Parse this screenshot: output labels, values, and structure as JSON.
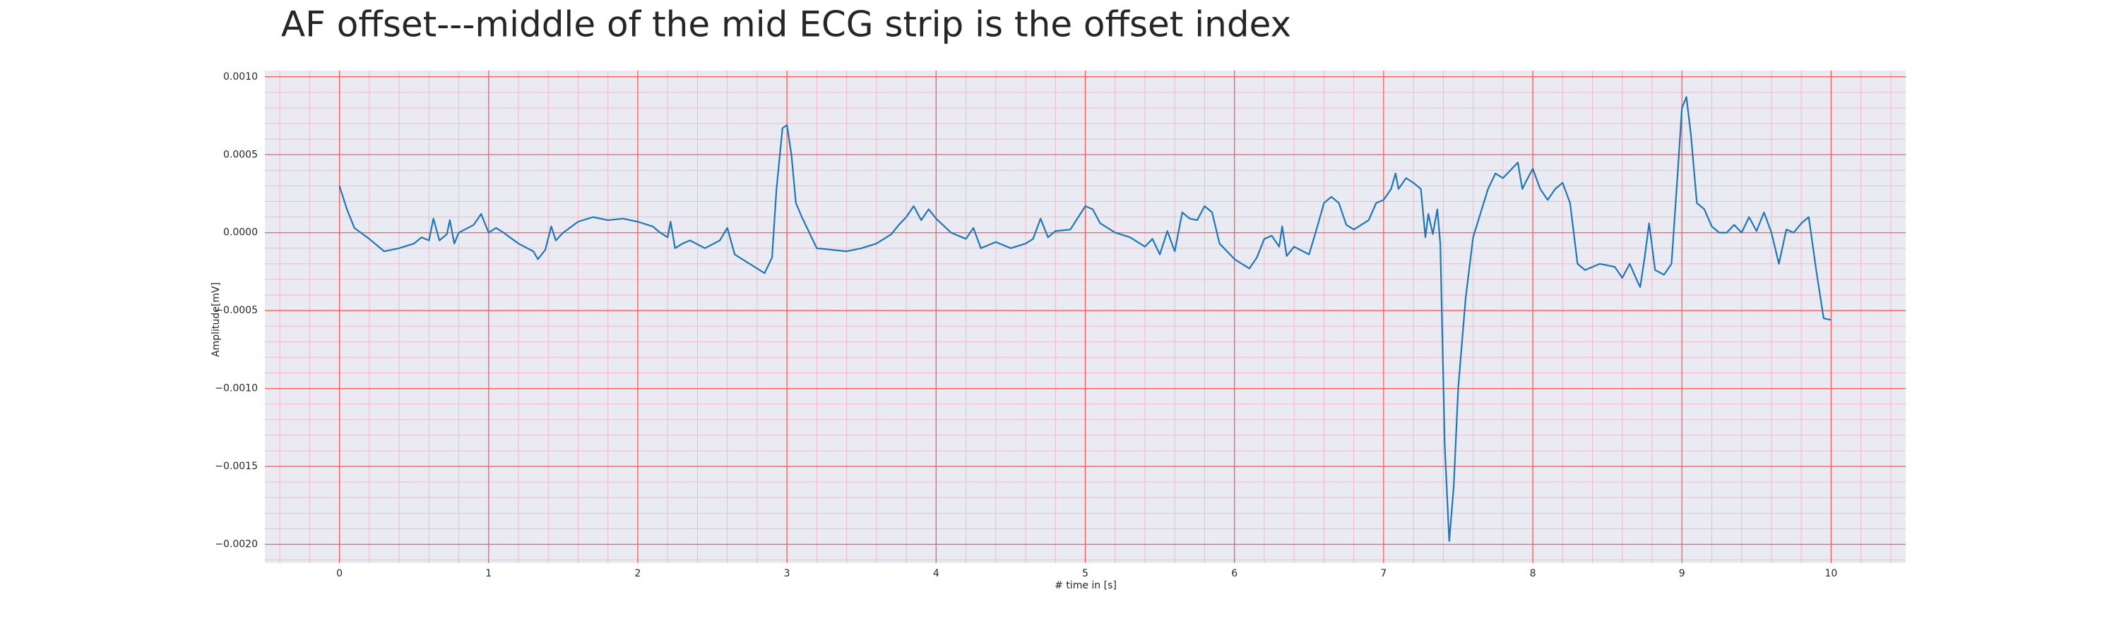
{
  "chart_data": {
    "type": "line",
    "title": "AF offset---middle of the mid ECG strip is the offset index",
    "x_label": "# time in [s]",
    "y_label": "Amplitude[mV]",
    "color": "#1f77b4",
    "background": "#eaeaf2",
    "grid": true,
    "grid_color": "#ff5a5a",
    "minor_grid": true,
    "minor_grid_color": "#f4b8c8",
    "minor_divisions": 5,
    "xlim": [
      -0.5,
      10.5
    ],
    "ylim": [
      -0.00212,
      0.00104
    ],
    "xticks": [
      0,
      1,
      2,
      3,
      4,
      5,
      6,
      7,
      8,
      9,
      10
    ],
    "yticks": [
      {
        "value": 0.001,
        "label": "0.0010"
      },
      {
        "value": 0.0005,
        "label": "0.0005"
      },
      {
        "value": 0,
        "label": "0.0000"
      },
      {
        "value": -0.0005,
        "label": "−0.0005"
      },
      {
        "value": -0.001,
        "label": "−0.0010"
      },
      {
        "value": -0.0015,
        "label": "−0.0015"
      },
      {
        "value": -0.002,
        "label": "−0.0020"
      }
    ],
    "x": [
      0,
      0.05,
      0.1,
      0.2,
      0.3,
      0.4,
      0.5,
      0.55,
      0.6,
      0.63,
      0.67,
      0.72,
      0.74,
      0.77,
      0.8,
      0.9,
      0.95,
      1.0,
      1.05,
      1.1,
      1.2,
      1.3,
      1.33,
      1.38,
      1.42,
      1.45,
      1.5,
      1.6,
      1.7,
      1.8,
      1.9,
      2.0,
      2.1,
      2.15,
      2.2,
      2.22,
      2.25,
      2.3,
      2.35,
      2.45,
      2.55,
      2.6,
      2.65,
      2.75,
      2.85,
      2.9,
      2.93,
      2.97,
      3.0,
      3.03,
      3.06,
      3.1,
      3.15,
      3.2,
      3.3,
      3.4,
      3.5,
      3.6,
      3.7,
      3.75,
      3.8,
      3.85,
      3.9,
      3.95,
      4.0,
      4.1,
      4.2,
      4.25,
      4.3,
      4.4,
      4.5,
      4.6,
      4.65,
      4.7,
      4.75,
      4.8,
      4.9,
      5.0,
      5.05,
      5.1,
      5.2,
      5.3,
      5.4,
      5.45,
      5.5,
      5.55,
      5.6,
      5.65,
      5.7,
      5.75,
      5.8,
      5.85,
      5.9,
      6.0,
      6.1,
      6.15,
      6.2,
      6.25,
      6.3,
      6.32,
      6.35,
      6.4,
      6.5,
      6.55,
      6.6,
      6.65,
      6.7,
      6.75,
      6.8,
      6.9,
      6.95,
      7.0,
      7.05,
      7.08,
      7.1,
      7.15,
      7.2,
      7.25,
      7.28,
      7.3,
      7.33,
      7.36,
      7.38,
      7.41,
      7.44,
      7.47,
      7.5,
      7.55,
      7.6,
      7.7,
      7.75,
      7.8,
      7.85,
      7.9,
      7.93,
      7.95,
      8.0,
      8.05,
      8.1,
      8.15,
      8.2,
      8.25,
      8.3,
      8.35,
      8.45,
      8.55,
      8.6,
      8.65,
      8.7,
      8.72,
      8.75,
      8.78,
      8.82,
      8.88,
      8.93,
      8.97,
      9.0,
      9.03,
      9.06,
      9.1,
      9.15,
      9.2,
      9.25,
      9.3,
      9.35,
      9.4,
      9.45,
      9.5,
      9.55,
      9.6,
      9.65,
      9.7,
      9.75,
      9.8,
      9.85,
      9.9,
      9.95,
      10.0
    ],
    "values": [
      0.0003,
      0.00015,
      3e-05,
      -4e-05,
      -0.00012,
      -0.0001,
      -7e-05,
      -3e-05,
      -5e-05,
      9e-05,
      -5e-05,
      -1e-05,
      8e-05,
      -7e-05,
      0,
      5e-05,
      0.00012,
      0,
      3e-05,
      0,
      -7e-05,
      -0.00012,
      -0.00017,
      -0.00011,
      4e-05,
      -5e-05,
      0,
      7e-05,
      0.0001,
      8e-05,
      9e-05,
      7e-05,
      4e-05,
      0,
      -3e-05,
      7e-05,
      -0.0001,
      -7e-05,
      -5e-05,
      -0.0001,
      -5e-05,
      3e-05,
      -0.00014,
      -0.0002,
      -0.00026,
      -0.00016,
      0.00028,
      0.00067,
      0.00069,
      0.0005,
      0.00019,
      0.0001,
      0,
      -0.0001,
      -0.00011,
      -0.00012,
      -0.0001,
      -7e-05,
      -1e-05,
      5e-05,
      0.0001,
      0.00017,
      8e-05,
      0.00015,
      9e-05,
      0,
      -4e-05,
      3e-05,
      -0.0001,
      -6e-05,
      -0.0001,
      -7e-05,
      -4e-05,
      9e-05,
      -3e-05,
      1e-05,
      2e-05,
      0.00017,
      0.00015,
      6e-05,
      0,
      -3e-05,
      -9e-05,
      -4e-05,
      -0.00014,
      1e-05,
      -0.00012,
      0.00013,
      9e-05,
      8e-05,
      0.00017,
      0.00013,
      -7e-05,
      -0.00017,
      -0.00023,
      -0.00016,
      -4e-05,
      -2e-05,
      -9e-05,
      4e-05,
      -0.00015,
      -9e-05,
      -0.00014,
      2e-05,
      0.00019,
      0.00023,
      0.00019,
      5e-05,
      2e-05,
      8e-05,
      0.00019,
      0.00021,
      0.00028,
      0.00038,
      0.00028,
      0.00035,
      0.00032,
      0.00028,
      -3e-05,
      0.00012,
      -1e-05,
      0.00015,
      -7e-05,
      -0.00137,
      -0.00198,
      -0.00163,
      -0.001,
      -0.00042,
      -3e-05,
      0.00028,
      0.00038,
      0.00035,
      0.0004,
      0.00045,
      0.00028,
      0.00032,
      0.00041,
      0.00028,
      0.00021,
      0.00028,
      0.00032,
      0.00019,
      -0.0002,
      -0.00024,
      -0.0002,
      -0.00022,
      -0.00029,
      -0.0002,
      -0.00031,
      -0.00035,
      -0.00016,
      6e-05,
      -0.00024,
      -0.00027,
      -0.0002,
      0.00036,
      0.0008,
      0.00087,
      0.00063,
      0.00019,
      0.00015,
      4e-05,
      0,
      0,
      5e-05,
      0,
      0.0001,
      1e-05,
      0.00013,
      0,
      -0.0002,
      2e-05,
      0,
      6e-05,
      0.0001,
      -0.00024,
      -0.00055,
      -0.00056
    ]
  }
}
